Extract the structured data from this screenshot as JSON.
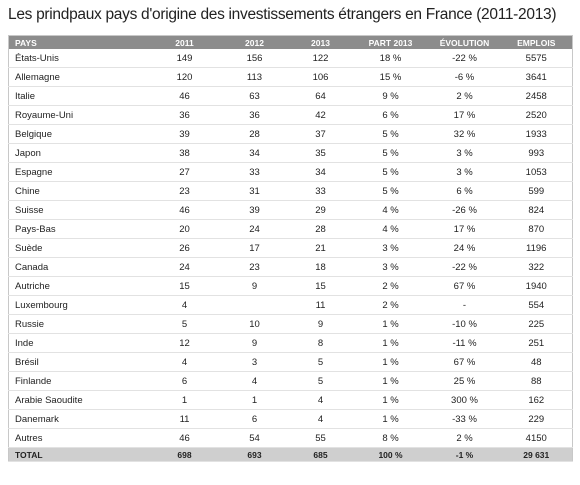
{
  "header": {
    "title": "Les prindpaux pays d'origine des investissements étrangers en France (2011-2013)"
  },
  "table": {
    "columns": [
      "PAYS",
      "2011",
      "2012",
      "2013",
      "PART 2013",
      "ÉVOLUTION",
      "EMPLOIS"
    ],
    "rows": [
      [
        "États-Unis",
        "149",
        "156",
        "122",
        "18 %",
        "-22 %",
        "5575"
      ],
      [
        "Allemagne",
        "120",
        "113",
        "106",
        "15 %",
        "-6 %",
        "3641"
      ],
      [
        "Italie",
        "46",
        "63",
        "64",
        "9 %",
        "2 %",
        "2458"
      ],
      [
        "Royaume-Uni",
        "36",
        "36",
        "42",
        "6 %",
        "17 %",
        "2520"
      ],
      [
        "Belgique",
        "39",
        "28",
        "37",
        "5 %",
        "32 %",
        "1933"
      ],
      [
        "Japon",
        "38",
        "34",
        "35",
        "5 %",
        "3 %",
        "993"
      ],
      [
        "Espagne",
        "27",
        "33",
        "34",
        "5 %",
        "3 %",
        "1053"
      ],
      [
        "Chine",
        "23",
        "31",
        "33",
        "5 %",
        "6 %",
        "599"
      ],
      [
        "Suisse",
        "46",
        "39",
        "29",
        "4 %",
        "-26 %",
        "824"
      ],
      [
        "Pays-Bas",
        "20",
        "24",
        "28",
        "4 %",
        "17 %",
        "870"
      ],
      [
        "Suède",
        "26",
        "17",
        "21",
        "3 %",
        "24 %",
        "1196"
      ],
      [
        "Canada",
        "24",
        "23",
        "18",
        "3 %",
        "-22 %",
        "322"
      ],
      [
        "Autriche",
        "15",
        "9",
        "15",
        "2 %",
        "67 %",
        "1940"
      ],
      [
        "Luxembourg",
        "4",
        null,
        "11",
        "2 %",
        "-",
        "554"
      ],
      [
        "Russie",
        "5",
        "10",
        "9",
        "1 %",
        "-10 %",
        "225"
      ],
      [
        "Inde",
        "12",
        "9",
        "8",
        "1 %",
        "-11 %",
        "251"
      ],
      [
        "Brésil",
        "4",
        "3",
        "5",
        "1 %",
        "67 %",
        "48"
      ],
      [
        "Finlande",
        "6",
        "4",
        "5",
        "1 %",
        "25 %",
        "88"
      ],
      [
        "Arabie Saoudite",
        "1",
        "1",
        "4",
        "1 %",
        "300 %",
        "162"
      ],
      [
        "Danemark",
        "11",
        "6",
        "4",
        "1 %",
        "-33 %",
        "229"
      ],
      [
        "Autres",
        "46",
        "54",
        "55",
        "8 %",
        "2 %",
        "4150"
      ]
    ],
    "total": [
      "TOTAL",
      "698",
      "693",
      "685",
      "100 %",
      "-1 %",
      "29 631"
    ]
  }
}
